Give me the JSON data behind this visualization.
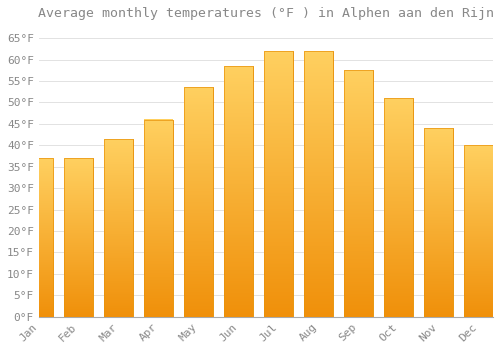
{
  "title": "Average monthly temperatures (°F ) in Alphen aan den Rijn",
  "months": [
    "Jan",
    "Feb",
    "Mar",
    "Apr",
    "May",
    "Jun",
    "Jul",
    "Aug",
    "Sep",
    "Oct",
    "Nov",
    "Dec"
  ],
  "values": [
    37,
    37,
    41.5,
    46,
    53.5,
    58.5,
    62,
    62,
    57.5,
    51,
    44,
    40
  ],
  "bar_color_top": "#FFD060",
  "bar_color_bottom": "#F0900A",
  "bar_color_face": "#FDB813",
  "bar_color_edge": "#E8920A",
  "background_color": "#FFFFFF",
  "grid_color": "#DDDDDD",
  "text_color": "#888888",
  "ylim": [
    0,
    68
  ],
  "yticks": [
    0,
    5,
    10,
    15,
    20,
    25,
    30,
    35,
    40,
    45,
    50,
    55,
    60,
    65
  ],
  "ytick_labels": [
    "0°F",
    "5°F",
    "10°F",
    "15°F",
    "20°F",
    "25°F",
    "30°F",
    "35°F",
    "40°F",
    "45°F",
    "50°F",
    "55°F",
    "60°F",
    "65°F"
  ],
  "title_fontsize": 9.5,
  "tick_fontsize": 8
}
